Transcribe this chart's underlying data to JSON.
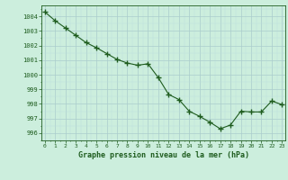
{
  "x": [
    0,
    1,
    2,
    3,
    4,
    5,
    6,
    7,
    8,
    9,
    10,
    11,
    12,
    13,
    14,
    15,
    16,
    17,
    18,
    19,
    20,
    21,
    22,
    23
  ],
  "y": [
    1004.3,
    1003.7,
    1003.2,
    1002.7,
    1002.2,
    1001.85,
    1001.45,
    1001.05,
    1000.8,
    1000.65,
    1000.75,
    999.8,
    998.65,
    998.3,
    997.5,
    997.15,
    996.75,
    996.3,
    996.55,
    997.5,
    997.45,
    997.45,
    998.2,
    997.95
  ],
  "line_color": "#1e5c1e",
  "marker_color": "#1e5c1e",
  "bg_color": "#cceedd",
  "grid_major_color": "#aacccc",
  "grid_minor_color": "#bbdddd",
  "text_color": "#1e5c1e",
  "spine_color": "#1e5c1e",
  "title": "Graphe pression niveau de la mer (hPa)",
  "ylim": [
    995.5,
    1004.75
  ],
  "yticks": [
    996,
    997,
    998,
    999,
    1000,
    1001,
    1002,
    1003,
    1004
  ],
  "xticks": [
    0,
    1,
    2,
    3,
    4,
    5,
    6,
    7,
    8,
    9,
    10,
    11,
    12,
    13,
    14,
    15,
    16,
    17,
    18,
    19,
    20,
    21,
    22,
    23
  ],
  "xlim": [
    -0.3,
    23.3
  ]
}
